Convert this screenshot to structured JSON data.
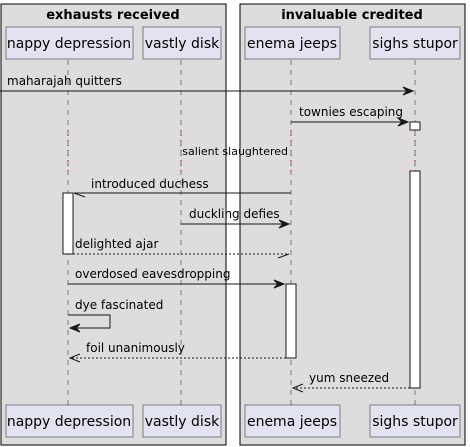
{
  "groups": [
    {
      "id": "g1",
      "title": "exhausts received"
    },
    {
      "id": "g2",
      "title": "invaluable credited"
    }
  ],
  "participants": [
    {
      "id": "p1",
      "label": "nappy depression"
    },
    {
      "id": "p2",
      "label": "vastly disk"
    },
    {
      "id": "p3",
      "label": "enema jeeps"
    },
    {
      "id": "p4",
      "label": "sighs stupor"
    }
  ],
  "messages": [
    {
      "id": "m1",
      "label": "maharajah quitters"
    },
    {
      "id": "m2",
      "label": "townies escaping"
    },
    {
      "id": "m3",
      "label": "introduced duchess"
    },
    {
      "id": "m4",
      "label": "duckling defies"
    },
    {
      "id": "m5",
      "label": "delighted ajar"
    },
    {
      "id": "m6",
      "label": "overdosed eavesdropping"
    },
    {
      "id": "m7",
      "label": "dye fascinated"
    },
    {
      "id": "m8",
      "label": "foil unanimously"
    },
    {
      "id": "m9",
      "label": "yum sneezed"
    }
  ],
  "delay_label": "salient slaughtered",
  "colors": {
    "group_fill": "#dddddd",
    "participant_fill": "#e2e2f0",
    "line": "#181818",
    "delay_dots": "#a80036"
  }
}
